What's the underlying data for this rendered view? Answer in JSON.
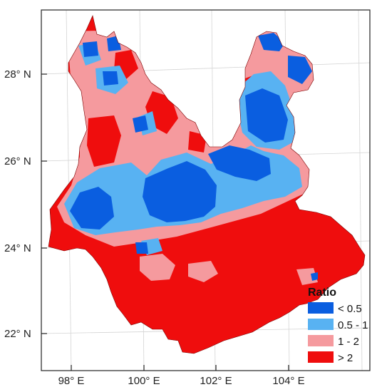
{
  "map": {
    "x_axis": {
      "ticks": [
        "98° E",
        "100° E",
        "102° E",
        "104° E"
      ]
    },
    "y_axis": {
      "ticks": [
        "28° N",
        "26° N",
        "24° N",
        "22° N"
      ]
    },
    "legend": {
      "title": "Ratio",
      "placement": "bottom-right",
      "items": [
        {
          "label": "< 0.5",
          "color": "#0a5ee0"
        },
        {
          "label": "0.5 - 1",
          "color": "#58b2f2"
        },
        {
          "label": "1 - 2",
          "color": "#f59a9e"
        },
        {
          "label": "> 2",
          "color": "#ef0d0d"
        }
      ]
    },
    "colors": {
      "frame": "#222222",
      "graticule": "#d4d4d4",
      "background": "#ffffff"
    }
  }
}
